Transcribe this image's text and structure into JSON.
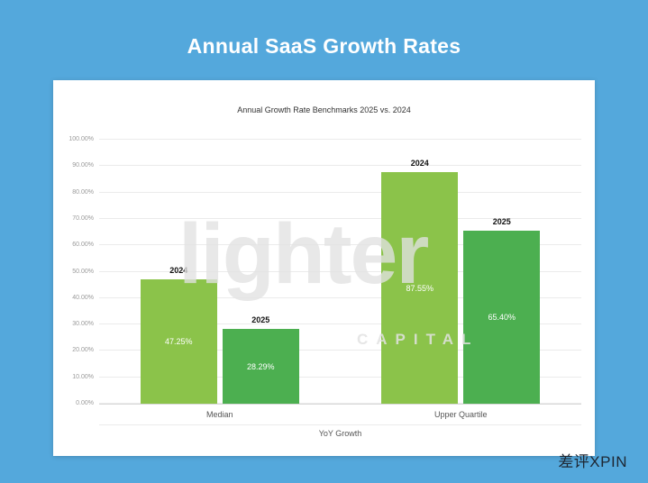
{
  "page": {
    "title": "Annual SaaS Growth Rates",
    "corner_watermark": "差评XPIN"
  },
  "watermark": {
    "brand": "lighter",
    "sub": "CAPITAL"
  },
  "chart_data": {
    "type": "bar",
    "title": "Annual Growth Rate Benchmarks 2025 vs. 2024",
    "categories": [
      "Median",
      "Upper Quartile"
    ],
    "series": [
      {
        "name": "2024",
        "color": "#8bc34a",
        "values": [
          47.25,
          87.55
        ],
        "labels": [
          "47.25%",
          "87.55%"
        ]
      },
      {
        "name": "2025",
        "color": "#4caf50",
        "values": [
          28.29,
          65.4
        ],
        "labels": [
          "28.29%",
          "65.40%"
        ]
      }
    ],
    "xlabel": "YoY Growth",
    "ylabel": "",
    "ylim": [
      0,
      100
    ],
    "yticks": [
      {
        "value": 100,
        "label": "100.00%"
      },
      {
        "value": 90,
        "label": "90.00%"
      },
      {
        "value": 80,
        "label": "80.00%"
      },
      {
        "value": 70,
        "label": "70.00%"
      },
      {
        "value": 60,
        "label": "60.00%"
      },
      {
        "value": 50,
        "label": "50.00%"
      },
      {
        "value": 40,
        "label": "40.00%"
      },
      {
        "value": 30,
        "label": "30.00%"
      },
      {
        "value": 20,
        "label": "20.00%"
      },
      {
        "value": 10,
        "label": "10.00%"
      },
      {
        "value": 0,
        "label": "0.00%"
      }
    ],
    "grid": true,
    "legend_position": "none",
    "value_label_position": "center-of-bar",
    "series_label_position": "above-bar"
  }
}
